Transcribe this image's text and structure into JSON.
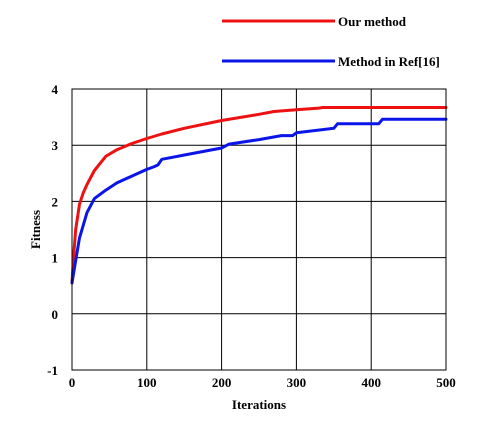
{
  "chart_data": {
    "type": "line",
    "title": "",
    "xlabel": "Iterations",
    "ylabel": "Fitness",
    "xlim": [
      0,
      500
    ],
    "ylim": [
      -1,
      4
    ],
    "xticks": [
      0,
      100,
      200,
      300,
      400,
      500
    ],
    "yticks": [
      -1,
      0,
      1,
      2,
      3,
      4
    ],
    "grid": true,
    "legend_position": "top-right",
    "series": [
      {
        "name": "Our method",
        "color": "#ee1111",
        "x": [
          0,
          2,
          5,
          10,
          15,
          20,
          30,
          45,
          60,
          80,
          100,
          120,
          150,
          200,
          250,
          270,
          300,
          330,
          335,
          400,
          500
        ],
        "y": [
          0.55,
          1.0,
          1.5,
          1.95,
          2.15,
          2.3,
          2.55,
          2.8,
          2.92,
          3.03,
          3.12,
          3.2,
          3.3,
          3.44,
          3.55,
          3.6,
          3.63,
          3.66,
          3.67,
          3.67,
          3.67
        ]
      },
      {
        "name": "Method in Ref[16]",
        "color": "#0a16e8",
        "x": [
          0,
          5,
          10,
          20,
          30,
          45,
          60,
          80,
          100,
          110,
          115,
          120,
          160,
          200,
          210,
          250,
          280,
          295,
          300,
          350,
          355,
          400,
          410,
          415,
          500
        ],
        "y": [
          0.55,
          0.95,
          1.35,
          1.8,
          2.05,
          2.2,
          2.33,
          2.45,
          2.57,
          2.62,
          2.65,
          2.75,
          2.85,
          2.95,
          3.02,
          3.1,
          3.17,
          3.17,
          3.22,
          3.3,
          3.38,
          3.38,
          3.38,
          3.46,
          3.46
        ]
      }
    ]
  }
}
